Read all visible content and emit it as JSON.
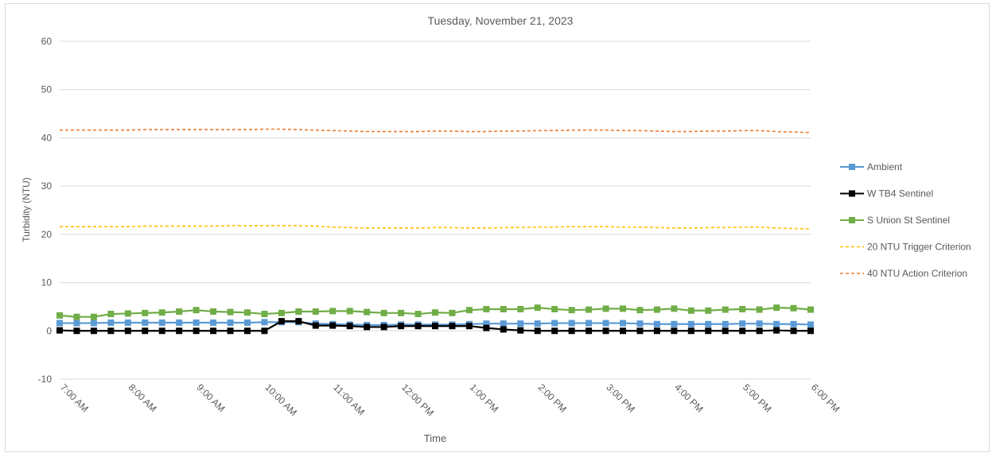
{
  "chart_data": {
    "type": "line",
    "title": "Tuesday, November 21, 2023",
    "xlabel": "Time",
    "ylabel": "Turbidity (NTU)",
    "ylim": [
      -10,
      60
    ],
    "yticks": [
      -10,
      0,
      10,
      20,
      30,
      40,
      50,
      60
    ],
    "xlim": [
      "7:00 AM",
      "6:00 PM"
    ],
    "xticks": [
      "7:00 AM",
      "8:00 AM",
      "9:00 AM",
      "10:00 AM",
      "11:00 AM",
      "12:00 PM",
      "1:00 PM",
      "2:00 PM",
      "3:00 PM",
      "4:00 PM",
      "5:00 PM",
      "6:00 PM"
    ],
    "grid": "horizontal",
    "legend_position": "right",
    "x": [
      "7:00 AM",
      "7:15 AM",
      "7:30 AM",
      "7:45 AM",
      "8:00 AM",
      "8:15 AM",
      "8:30 AM",
      "8:45 AM",
      "9:00 AM",
      "9:15 AM",
      "9:30 AM",
      "9:45 AM",
      "10:00 AM",
      "10:15 AM",
      "10:30 AM",
      "10:45 AM",
      "11:00 AM",
      "11:15 AM",
      "11:30 AM",
      "11:45 AM",
      "12:00 PM",
      "12:15 PM",
      "12:30 PM",
      "12:45 PM",
      "1:00 PM",
      "1:15 PM",
      "1:30 PM",
      "1:45 PM",
      "2:00 PM",
      "2:15 PM",
      "2:30 PM",
      "2:45 PM",
      "3:00 PM",
      "3:15 PM",
      "3:30 PM",
      "3:45 PM",
      "4:00 PM",
      "4:15 PM",
      "4:30 PM",
      "4:45 PM",
      "5:00 PM",
      "5:15 PM",
      "5:30 PM",
      "5:45 PM",
      "6:00 PM"
    ],
    "series": [
      {
        "name": "Ambient",
        "color": "#5b9bd5",
        "style": "solid",
        "marker": "square",
        "values": [
          1.6,
          1.6,
          1.6,
          1.7,
          1.7,
          1.7,
          1.7,
          1.7,
          1.7,
          1.7,
          1.7,
          1.7,
          1.8,
          1.8,
          1.8,
          1.5,
          1.4,
          1.3,
          1.2,
          1.2,
          1.3,
          1.3,
          1.3,
          1.3,
          1.4,
          1.5,
          1.5,
          1.5,
          1.5,
          1.6,
          1.6,
          1.6,
          1.6,
          1.6,
          1.5,
          1.4,
          1.4,
          1.4,
          1.4,
          1.4,
          1.5,
          1.5,
          1.4,
          1.4,
          1.3
        ]
      },
      {
        "name": "W TB4 Sentinel",
        "color": "#000000",
        "style": "solid",
        "marker": "square",
        "values": [
          0.1,
          0,
          0,
          0,
          0,
          0,
          0,
          0,
          0,
          0,
          0,
          0,
          0,
          2.0,
          2.0,
          1.1,
          1.1,
          1.0,
          0.8,
          0.8,
          1.0,
          1.0,
          1.0,
          1.0,
          1.0,
          0.6,
          0.3,
          0.1,
          0,
          0,
          0,
          0,
          0,
          0,
          0,
          0,
          0,
          0,
          0,
          0,
          0,
          0,
          0.1,
          0,
          0
        ]
      },
      {
        "name": "S Union St Sentinel",
        "color": "#70ad47",
        "style": "solid",
        "marker": "square",
        "values": [
          3.2,
          2.9,
          2.9,
          3.5,
          3.6,
          3.7,
          3.8,
          4.0,
          4.3,
          4.0,
          3.9,
          3.8,
          3.5,
          3.7,
          4.0,
          4.0,
          4.1,
          4.1,
          3.9,
          3.7,
          3.7,
          3.5,
          3.8,
          3.7,
          4.3,
          4.5,
          4.5,
          4.5,
          4.8,
          4.5,
          4.3,
          4.4,
          4.6,
          4.6,
          4.3,
          4.4,
          4.6,
          4.2,
          4.2,
          4.4,
          4.5,
          4.4,
          4.8,
          4.7,
          4.4
        ]
      },
      {
        "name": "20 NTU Trigger Criterion",
        "color": "#ffc000",
        "style": "dashed",
        "marker": "none",
        "values": [
          21.6,
          21.6,
          21.6,
          21.6,
          21.6,
          21.7,
          21.7,
          21.7,
          21.7,
          21.7,
          21.8,
          21.8,
          21.8,
          21.8,
          21.8,
          21.7,
          21.5,
          21.4,
          21.3,
          21.3,
          21.3,
          21.3,
          21.4,
          21.4,
          21.3,
          21.3,
          21.4,
          21.4,
          21.5,
          21.5,
          21.6,
          21.6,
          21.6,
          21.5,
          21.5,
          21.4,
          21.3,
          21.3,
          21.4,
          21.4,
          21.5,
          21.5,
          21.3,
          21.2,
          21.1
        ]
      },
      {
        "name": "40 NTU Action Criterion",
        "color": "#ed7d31",
        "style": "dashed",
        "marker": "none",
        "values": [
          41.6,
          41.6,
          41.6,
          41.6,
          41.6,
          41.7,
          41.7,
          41.7,
          41.7,
          41.7,
          41.7,
          41.7,
          41.8,
          41.8,
          41.7,
          41.6,
          41.5,
          41.4,
          41.3,
          41.3,
          41.3,
          41.3,
          41.4,
          41.4,
          41.3,
          41.3,
          41.4,
          41.4,
          41.5,
          41.5,
          41.6,
          41.6,
          41.6,
          41.5,
          41.5,
          41.4,
          41.3,
          41.3,
          41.4,
          41.4,
          41.5,
          41.5,
          41.3,
          41.2,
          41.1
        ]
      }
    ]
  }
}
